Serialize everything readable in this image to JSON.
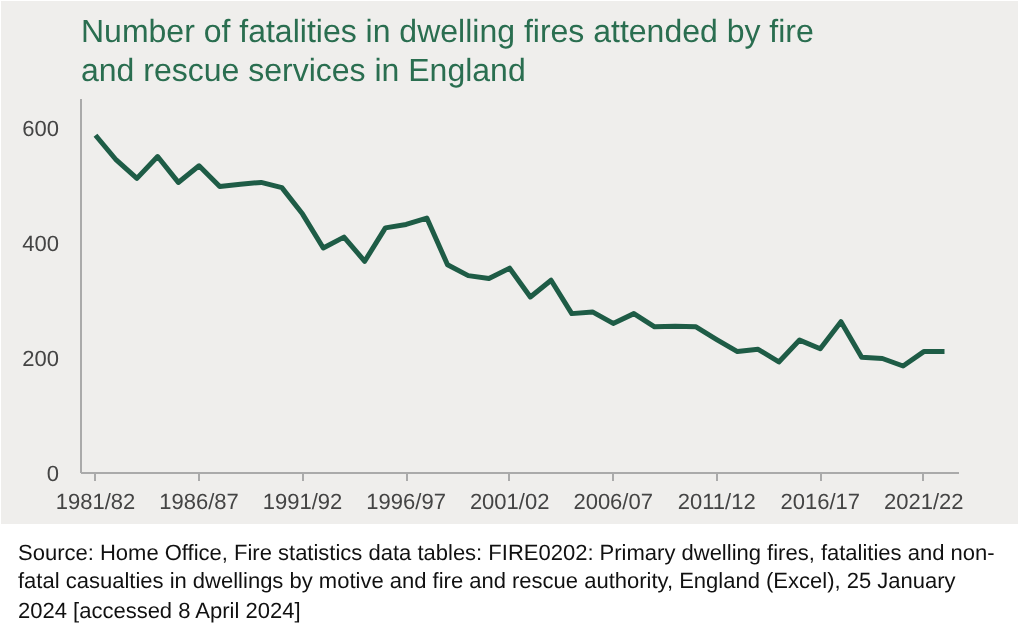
{
  "chart_data": {
    "type": "line",
    "title": "Number of fatalities in dwelling fires attended by fire and rescue services in England",
    "categories": [
      "1981/82",
      null,
      null,
      null,
      null,
      "1986/87",
      null,
      null,
      null,
      null,
      "1991/92",
      null,
      null,
      null,
      null,
      "1996/97",
      null,
      null,
      null,
      null,
      "2001/02",
      null,
      null,
      null,
      null,
      "2006/07",
      null,
      null,
      null,
      null,
      "2011/12",
      null,
      null,
      null,
      null,
      "2016/17",
      null,
      null,
      null,
      null,
      "2021/22",
      null
    ],
    "series": [
      {
        "color": "#1e5c46",
        "values": [
          587,
          544,
          512,
          550,
          505,
          534,
          498,
          502,
          505,
          496,
          450,
          391,
          410,
          368,
          426,
          432,
          443,
          362,
          343,
          338,
          356,
          306,
          335,
          277,
          280,
          260,
          277,
          254,
          255,
          254,
          232,
          211,
          215,
          193,
          231,
          216,
          263,
          201,
          199,
          186,
          211,
          211
        ]
      }
    ],
    "ylim": [
      0,
      650
    ],
    "yticks": [
      0,
      200,
      400,
      600
    ],
    "grid": false,
    "marker": "none",
    "line_style": "solid",
    "annotations": [
      "Source: Home Office, Fire statistics data tables: FIRE0202: Primary dwelling fires, fatalities and non-fatal casualties in dwellings by motive and fire and rescue authority, England (Excel), 25 January 2024 [accessed 8 April 2024]"
    ]
  }
}
